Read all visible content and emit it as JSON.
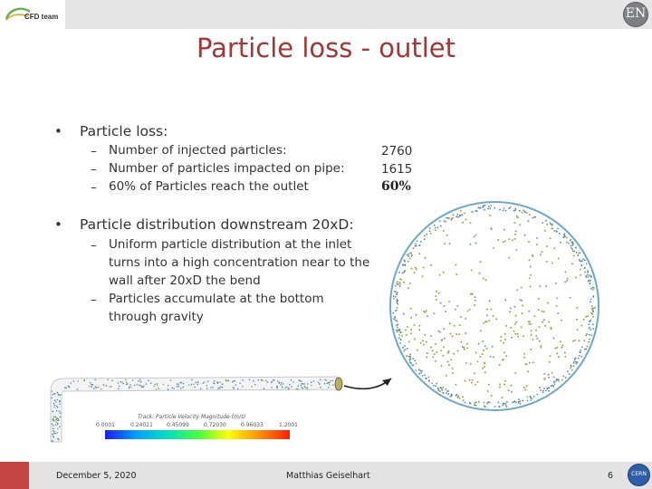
{
  "header": {
    "logo_text": "CFD team",
    "badge_text": "EN"
  },
  "title": "Particle loss - outlet",
  "bullets": [
    {
      "text": "Particle loss:",
      "items": [
        "Number of injected particles:",
        "Number of particles impacted on pipe:",
        "60% of Particles reach the outlet"
      ],
      "values": [
        "2760",
        "1615",
        "60%"
      ]
    },
    {
      "text": "Particle distribution downstream 20xD:",
      "items": [
        "Uniform particle distribution at the inlet turns into a high concentration near to the wall after 20xD the bend",
        "Particles accumulate at the bottom through gravity"
      ]
    }
  ],
  "figure": {
    "colorbar_title": "Track: Particle Velocity Magnitude (m/s)",
    "ticks": [
      "0.0001",
      "0.24021",
      "0.45099",
      "0.72030",
      "0.96033",
      "1.2001"
    ],
    "colors": [
      "#1a1aff",
      "#00a0ff",
      "#00e0c0",
      "#40ff40",
      "#ffff00",
      "#ff9000",
      "#ff2000"
    ]
  },
  "footer": {
    "date": "December 5, 2020",
    "author": "Matthias Geiselhart",
    "page": "6",
    "logo_text": "CERN"
  }
}
